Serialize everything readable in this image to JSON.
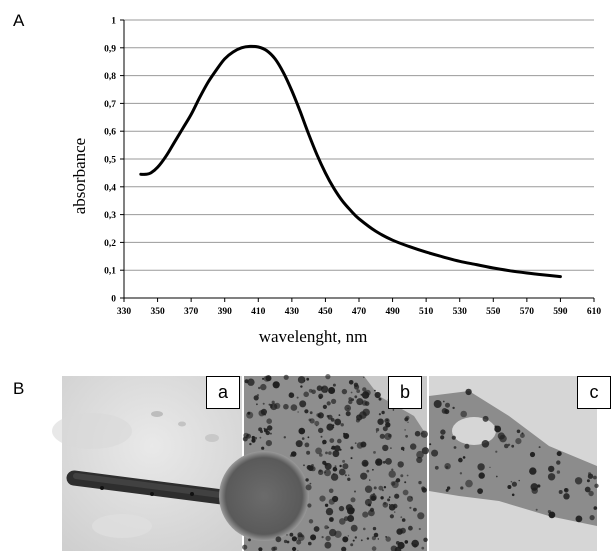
{
  "figure": {
    "panel_a_letter": "A",
    "panel_b_letter": "B",
    "micrograph_labels": [
      "a",
      "b",
      "c"
    ]
  },
  "chart_data": {
    "type": "line",
    "title": "",
    "xlabel": "wavelenght,  nm",
    "ylabel": "absorbance",
    "xlim": [
      330,
      610
    ],
    "ylim": [
      0,
      1
    ],
    "x_ticks": [
      "330",
      "350",
      "370",
      "390",
      "410",
      "430",
      "450",
      "470",
      "490",
      "510",
      "530",
      "550",
      "570",
      "590",
      "610"
    ],
    "y_ticks": [
      "0",
      "0,1",
      "0,2",
      "0,3",
      "0,4",
      "0,5",
      "0,6",
      "0,7",
      "0,8",
      "0,9",
      "1"
    ],
    "grid": "horizontal",
    "line_color": "#000000",
    "series": [
      {
        "x": [
          340,
          343,
          346,
          350,
          355,
          360,
          365,
          370,
          375,
          380,
          385,
          390,
          395,
          400,
          405,
          410,
          415,
          420,
          425,
          430,
          435,
          440,
          445,
          450,
          455,
          460,
          465,
          470,
          480,
          490,
          500,
          510,
          520,
          530,
          540,
          550,
          560,
          570,
          580,
          590
        ],
        "y": [
          0.445,
          0.445,
          0.45,
          0.47,
          0.51,
          0.56,
          0.61,
          0.66,
          0.72,
          0.775,
          0.82,
          0.86,
          0.885,
          0.9,
          0.905,
          0.903,
          0.89,
          0.86,
          0.81,
          0.745,
          0.67,
          0.59,
          0.515,
          0.45,
          0.395,
          0.35,
          0.315,
          0.285,
          0.24,
          0.208,
          0.185,
          0.165,
          0.148,
          0.132,
          0.12,
          0.108,
          0.098,
          0.09,
          0.083,
          0.077
        ]
      }
    ]
  }
}
